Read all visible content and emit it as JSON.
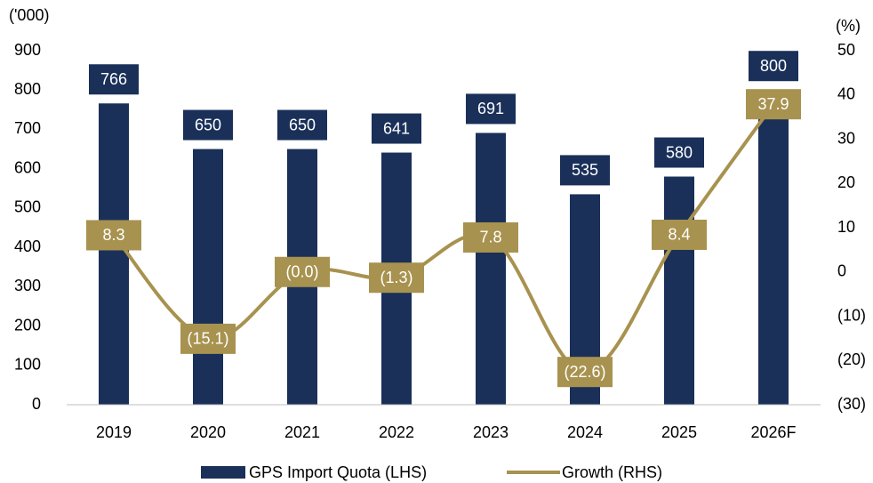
{
  "chart_data": {
    "type": "bar",
    "y_label": "('000)",
    "y2_label": "(%)",
    "categories": [
      "2019",
      "2020",
      "2021",
      "2022",
      "2023",
      "2024",
      "2025",
      "2026F"
    ],
    "series": [
      {
        "name": "GPS Import Quota (LHS)",
        "type": "bar",
        "color": "#1a3059",
        "values": [
          766,
          650,
          650,
          641,
          691,
          535,
          580,
          800
        ]
      },
      {
        "name": "Growth (RHS)",
        "type": "line",
        "axis": "y2",
        "color": "#a8924f",
        "values": [
          8.3,
          -15.1,
          0,
          -1.3,
          7.8,
          -22.6,
          8.4,
          37.9
        ],
        "value_labels": [
          "8.3",
          "(15.1)",
          "(0.0)",
          "(1.3)",
          "7.8",
          "(22.6)",
          "8.4",
          "37.9"
        ]
      }
    ],
    "ylim": [
      0,
      900
    ],
    "yticks": [
      0,
      100,
      200,
      300,
      400,
      500,
      600,
      700,
      800,
      900
    ],
    "y2lim": [
      -30,
      50
    ],
    "y2ticks": [
      {
        "value": -30,
        "label": "(30)"
      },
      {
        "value": -20,
        "label": "(20)"
      },
      {
        "value": -10,
        "label": "(10)"
      },
      0,
      10,
      20,
      30,
      40,
      50
    ],
    "legend": "bottom"
  }
}
